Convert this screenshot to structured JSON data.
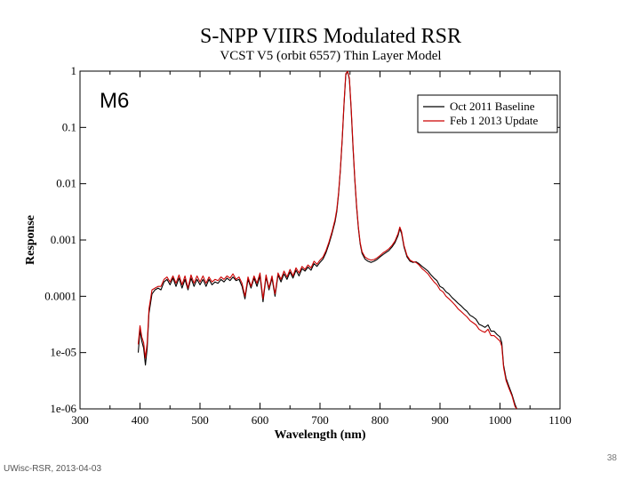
{
  "chart_data": {
    "type": "line",
    "title": "S-NPP VIIRS Modulated RSR",
    "subtitle": "VCST V5 (orbit 6557) Thin Layer Model",
    "band_label": "M6",
    "xlabel": "Wavelength (nm)",
    "ylabel": "Response",
    "xlim": [
      300,
      1100
    ],
    "ylim": [
      1e-06,
      1
    ],
    "yscale": "log",
    "x_ticks": [
      "300",
      "400",
      "500",
      "600",
      "700",
      "800",
      "900",
      "1000",
      "1100"
    ],
    "y_ticks": [
      "1e-06",
      "1e-05",
      "0.0001",
      "0.001",
      "0.01",
      "0.1",
      "1"
    ],
    "legend_position": "top-right",
    "series": [
      {
        "name": "Oct 2011 Baseline",
        "color": "#000000",
        "x": [
          397,
          400,
          403,
          406,
          409,
          412,
          415,
          420,
          425,
          430,
          435,
          440,
          445,
          450,
          455,
          460,
          465,
          470,
          475,
          480,
          485,
          490,
          495,
          500,
          505,
          510,
          515,
          520,
          525,
          530,
          535,
          540,
          545,
          550,
          555,
          560,
          565,
          570,
          575,
          580,
          585,
          590,
          595,
          600,
          605,
          610,
          615,
          620,
          625,
          630,
          635,
          640,
          645,
          650,
          655,
          660,
          665,
          670,
          675,
          680,
          685,
          690,
          695,
          700,
          705,
          710,
          715,
          720,
          725,
          728,
          731,
          734,
          737,
          740,
          743,
          746,
          749,
          752,
          755,
          758,
          761,
          764,
          767,
          770,
          775,
          780,
          785,
          790,
          795,
          800,
          805,
          810,
          815,
          820,
          825,
          830,
          833,
          836,
          840,
          845,
          850,
          855,
          860,
          865,
          870,
          875,
          880,
          885,
          890,
          895,
          900,
          905,
          910,
          915,
          920,
          925,
          930,
          935,
          940,
          945,
          950,
          955,
          960,
          965,
          970,
          975,
          980,
          985,
          990,
          995,
          1000,
          1003,
          1006,
          1010,
          1015,
          1020,
          1025,
          1028
        ],
        "y": [
          1e-05,
          2.5e-05,
          1.6e-05,
          1.2e-05,
          6e-06,
          1.2e-05,
          5e-05,
          0.00011,
          0.00013,
          0.00014,
          0.00013,
          0.00018,
          0.0002,
          0.00016,
          0.00021,
          0.00015,
          0.00021,
          0.00014,
          0.0002,
          0.00013,
          0.00021,
          0.00015,
          0.0002,
          0.00016,
          0.0002,
          0.00015,
          0.0002,
          0.00016,
          0.00018,
          0.00017,
          0.0002,
          0.00018,
          0.00021,
          0.00019,
          0.00022,
          0.00019,
          0.0002,
          0.00015,
          9e-05,
          0.0002,
          0.00014,
          0.00021,
          0.00015,
          0.00023,
          8e-05,
          0.00022,
          0.00013,
          0.00021,
          0.0001,
          0.00024,
          0.00018,
          0.00025,
          0.0002,
          0.00027,
          0.00021,
          0.00029,
          0.00023,
          0.00031,
          0.00028,
          0.00033,
          0.00029,
          0.00038,
          0.00034,
          0.0004,
          0.00046,
          0.0006,
          0.00085,
          0.0013,
          0.0021,
          0.0032,
          0.0065,
          0.017,
          0.06,
          0.25,
          0.85,
          1.0,
          0.7,
          0.2,
          0.045,
          0.012,
          0.0038,
          0.0016,
          0.00085,
          0.00058,
          0.00046,
          0.00042,
          0.0004,
          0.00042,
          0.00045,
          0.0005,
          0.00055,
          0.0006,
          0.00065,
          0.00075,
          0.0009,
          0.0012,
          0.0016,
          0.0013,
          0.00075,
          0.0005,
          0.00042,
          0.0004,
          0.00041,
          0.00038,
          0.00034,
          0.00031,
          0.00028,
          0.00024,
          0.00021,
          0.00019,
          0.00015,
          0.00014,
          0.00012,
          0.00011,
          9.5e-05,
          8.5e-05,
          7.5e-05,
          6.8e-05,
          6e-05,
          5.4e-05,
          4.6e-05,
          4.3e-05,
          3.9e-05,
          3.2e-05,
          3e-05,
          2.8e-05,
          3.1e-05,
          2.4e-05,
          2.4e-05,
          2.1e-05,
          1.9e-05,
          1.5e-05,
          6e-06,
          3.5e-06,
          2.5e-06,
          1.8e-06,
          1.2e-06,
          1e-06
        ]
      },
      {
        "name": "Feb 1 2013 Update",
        "color": "#cc0000",
        "x": [
          397,
          400,
          403,
          406,
          409,
          412,
          415,
          420,
          425,
          430,
          435,
          440,
          445,
          450,
          455,
          460,
          465,
          470,
          475,
          480,
          485,
          490,
          495,
          500,
          505,
          510,
          515,
          520,
          525,
          530,
          535,
          540,
          545,
          550,
          555,
          560,
          565,
          570,
          575,
          580,
          585,
          590,
          595,
          600,
          605,
          610,
          615,
          620,
          625,
          630,
          635,
          640,
          645,
          650,
          655,
          660,
          665,
          670,
          675,
          680,
          685,
          690,
          695,
          700,
          705,
          710,
          715,
          720,
          725,
          728,
          731,
          734,
          737,
          740,
          743,
          746,
          749,
          752,
          755,
          758,
          761,
          764,
          767,
          770,
          775,
          780,
          785,
          790,
          795,
          800,
          805,
          810,
          815,
          820,
          825,
          830,
          833,
          836,
          840,
          845,
          850,
          855,
          860,
          865,
          870,
          875,
          880,
          885,
          890,
          895,
          900,
          905,
          910,
          915,
          920,
          925,
          930,
          935,
          940,
          945,
          950,
          955,
          960,
          965,
          970,
          975,
          980,
          985,
          990,
          995,
          1000,
          1003,
          1006,
          1010,
          1015,
          1020,
          1025,
          1028
        ],
        "y": [
          1.4e-05,
          3e-05,
          1.9e-05,
          1.5e-05,
          8e-06,
          1.5e-05,
          6e-05,
          0.00013,
          0.00014,
          0.00015,
          0.00015,
          0.0002,
          0.00022,
          0.00018,
          0.00023,
          0.00017,
          0.00024,
          0.00016,
          0.00023,
          0.00014,
          0.00024,
          0.00017,
          0.00023,
          0.00018,
          0.00023,
          0.00017,
          0.00022,
          0.00018,
          0.0002,
          0.00019,
          0.00022,
          0.0002,
          0.00023,
          0.00021,
          0.00025,
          0.0002,
          0.00022,
          0.00017,
          0.0001,
          0.00022,
          0.00015,
          0.00023,
          0.00017,
          0.00026,
          9e-05,
          0.00024,
          0.00014,
          0.00023,
          0.00011,
          0.00026,
          0.0002,
          0.00028,
          0.00022,
          0.0003,
          0.00023,
          0.00032,
          0.00026,
          0.00034,
          0.0003,
          0.00036,
          0.00032,
          0.00042,
          0.00037,
          0.00044,
          0.0005,
          0.00065,
          0.00092,
          0.0014,
          0.0023,
          0.0035,
          0.007,
          0.018,
          0.065,
          0.27,
          0.9,
          1.0,
          0.74,
          0.22,
          0.05,
          0.013,
          0.0041,
          0.0017,
          0.0009,
          0.00062,
          0.0005,
          0.00046,
          0.00044,
          0.00045,
          0.00048,
          0.00053,
          0.00059,
          0.00064,
          0.0007,
          0.0008,
          0.00096,
          0.0013,
          0.0017,
          0.0014,
          0.0008,
          0.00053,
          0.00044,
          0.00041,
          0.0004,
          0.00036,
          0.00031,
          0.00028,
          0.00025,
          0.00021,
          0.00018,
          0.00016,
          0.00013,
          0.00012,
          0.0001,
          9e-05,
          8e-05,
          7e-05,
          6e-05,
          5.4e-05,
          4.8e-05,
          4.3e-05,
          3.7e-05,
          3.4e-05,
          3.1e-05,
          2.6e-05,
          2.4e-05,
          2.3e-05,
          2.6e-05,
          2e-05,
          2e-05,
          1.8e-05,
          1.6e-05,
          1.3e-05,
          5.5e-06,
          3.2e-06,
          2.3e-06,
          1.7e-06,
          1.1e-06,
          1e-06
        ]
      }
    ]
  },
  "footer": {
    "source_text": "UWisc-RSR, 2013-04-03",
    "page_number": "38"
  }
}
